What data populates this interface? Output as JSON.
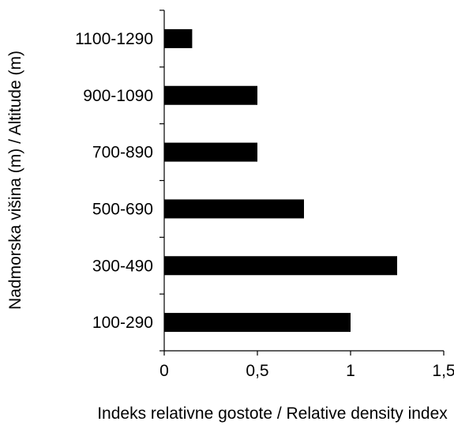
{
  "chart_data": {
    "type": "bar",
    "orientation": "horizontal",
    "categories": [
      "1100-1290",
      "900-1090",
      "700-890",
      "500-690",
      "300-490",
      "100-290"
    ],
    "values": [
      0.15,
      0.5,
      0.5,
      0.75,
      1.25,
      1.0
    ],
    "xlabel": "Indeks relativne gostote / Relative density index",
    "ylabel": "Nadmorska višina (m) / Altitude (m)",
    "xlim": [
      0,
      1.5
    ],
    "x_ticks": [
      0,
      0.5,
      1,
      1.5
    ],
    "x_tick_labels": [
      "0",
      "0,5",
      "1",
      "1,5"
    ],
    "grid": false,
    "bar_color": "#000000"
  }
}
